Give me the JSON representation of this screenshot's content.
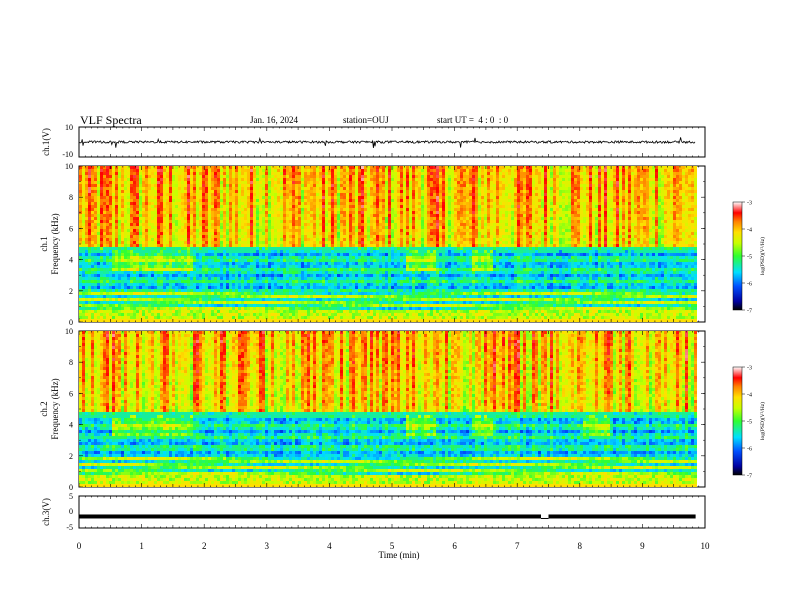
{
  "header": {
    "title": "VLF Spectra",
    "date": "Jan. 16, 2024",
    "station": "station=OUJ",
    "start": "start UT =  4 : 0  : 0"
  },
  "chart_data": [
    {
      "type": "line",
      "panel": "ch1-waveform",
      "ylabel": "ch.1(V)",
      "ylim": [
        -10,
        10
      ],
      "yticks": [
        "10",
        "-10"
      ],
      "xlim": [
        0,
        10
      ],
      "description_values": {
        "baseline": 0,
        "amplitude_approx": 1.5
      }
    },
    {
      "type": "heatmap",
      "panel": "ch1-spectrogram",
      "ylabel_line1": "ch.1",
      "ylabel_line2": "Frequency (kHz)",
      "ylim": [
        0,
        10
      ],
      "yticks": [
        "0",
        "2",
        "4",
        "6",
        "8",
        "10"
      ],
      "xlim": [
        0,
        9.85
      ],
      "colorbar": {
        "label": "log(PSD)(V²/Hz)",
        "range": [
          -7,
          -3
        ],
        "ticks": [
          "-3",
          "-4",
          "-5",
          "-6",
          "-7"
        ]
      }
    },
    {
      "type": "heatmap",
      "panel": "ch2-spectrogram",
      "ylabel_line1": "ch.2",
      "ylabel_line2": "Frequency (kHz)",
      "ylim": [
        0,
        10
      ],
      "yticks": [
        "0",
        "2",
        "4",
        "6",
        "8",
        "10"
      ],
      "xlim": [
        0,
        9.85
      ],
      "colorbar": {
        "label": "log(PSD)(V²/Hz)",
        "range": [
          -7,
          -3
        ],
        "ticks": [
          "-3",
          "-4",
          "-5",
          "-6",
          "-7"
        ]
      }
    },
    {
      "type": "line",
      "panel": "ch3-level",
      "ylabel": "ch.3(V)",
      "ylim": [
        -5,
        5
      ],
      "yticks": [
        "5",
        "0",
        "-5"
      ],
      "x": [
        0,
        7.38,
        7.5,
        9.85
      ],
      "y": [
        -1.4,
        -1.4,
        -1.4,
        -1.4
      ],
      "gap_x": [
        7.38,
        7.5
      ]
    }
  ],
  "xaxis": {
    "label": "Time (min)",
    "range": [
      0,
      10
    ],
    "ticks": [
      "0",
      "1",
      "2",
      "3",
      "4",
      "5",
      "6",
      "7",
      "8",
      "9",
      "10"
    ]
  }
}
